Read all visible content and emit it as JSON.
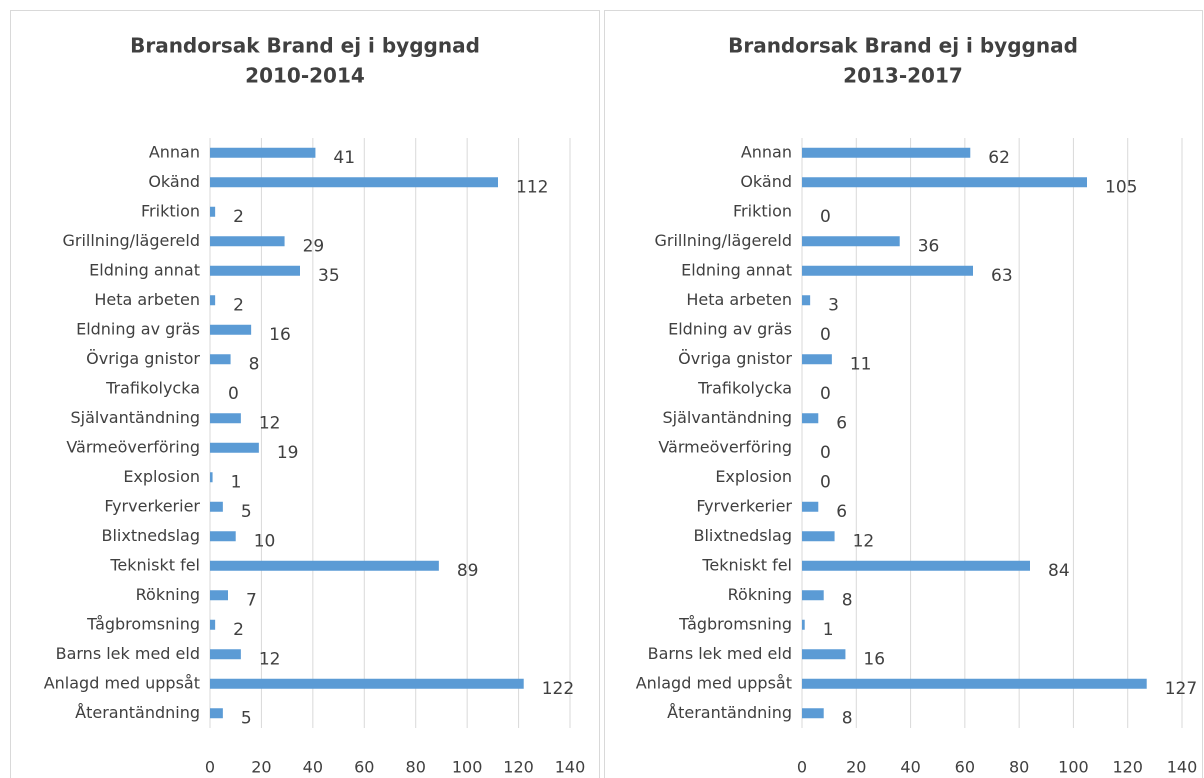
{
  "chart_data": [
    {
      "type": "bar",
      "orientation": "horizontal",
      "title": [
        "Brandorsak Brand ej i byggnad",
        "2010-2014"
      ],
      "categories": [
        "Annan",
        "Okänd",
        "Friktion",
        "Grillning/lägereld",
        "Eldning annat",
        "Heta arbeten",
        "Eldning av gräs",
        "Övriga gnistor",
        "Trafikolycka",
        "Självantändning",
        "Värmeöverföring",
        "Explosion",
        "Fyrverkerier",
        "Blixtnedslag",
        "Tekniskt fel",
        "Rökning",
        "Tågbromsning",
        "Barns lek med eld",
        "Anlagd med uppsåt",
        "Återantändning"
      ],
      "values": [
        41,
        112,
        2,
        29,
        35,
        2,
        16,
        8,
        0,
        12,
        19,
        1,
        5,
        10,
        89,
        7,
        2,
        12,
        122,
        5
      ],
      "color": "#5b9bd5",
      "xlim": [
        0,
        140
      ],
      "xticks": [
        0,
        20,
        40,
        60,
        80,
        100,
        120,
        140
      ],
      "grid": true
    },
    {
      "type": "bar",
      "orientation": "horizontal",
      "title": [
        "Brandorsak Brand ej i byggnad",
        "2013-2017"
      ],
      "categories": [
        "Annan",
        "Okänd",
        "Friktion",
        "Grillning/lägereld",
        "Eldning annat",
        "Heta arbeten",
        "Eldning av gräs",
        "Övriga gnistor",
        "Trafikolycka",
        "Självantändning",
        "Värmeöverföring",
        "Explosion",
        "Fyrverkerier",
        "Blixtnedslag",
        "Tekniskt fel",
        "Rökning",
        "Tågbromsning",
        "Barns lek med eld",
        "Anlagd med uppsåt",
        "Återantändning"
      ],
      "values": [
        62,
        105,
        0,
        36,
        63,
        3,
        0,
        11,
        0,
        6,
        0,
        0,
        6,
        12,
        84,
        8,
        1,
        16,
        127,
        8
      ],
      "color": "#5b9bd5",
      "xlim": [
        0,
        140
      ],
      "xticks": [
        0,
        20,
        40,
        60,
        80,
        100,
        120,
        140
      ],
      "grid": true
    }
  ]
}
